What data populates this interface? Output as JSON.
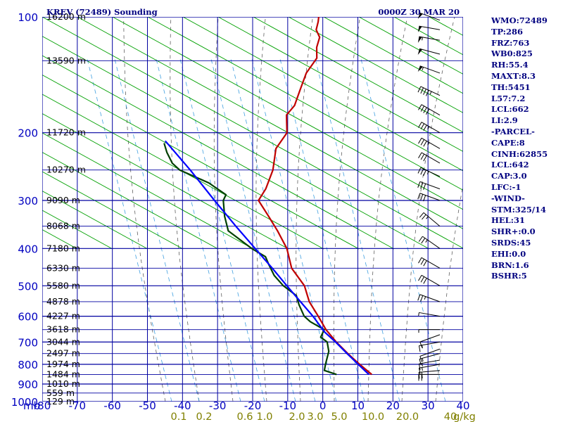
{
  "header": {
    "station": "KREV (72489) Sounding",
    "time": "0000Z 30 MAR 20"
  },
  "side_panel": [
    "WMO:72489",
    "TP:286",
    "FRZ:763",
    "WB0:825",
    "RH:55.4",
    "MAXT:8.3",
    "TH:5451",
    "L57:7.2",
    "LCL:662",
    "LI:2.9",
    "-PARCEL-",
    "CAPE:8",
    "CINH:62855",
    "LCL:642",
    "CAP:3.0",
    "LFC:-1",
    "-WIND-",
    "STM:325/14",
    "HEL:31",
    "SHR+:0.0",
    "SRDS:45",
    "EHI:0.0",
    "BRN:1.6",
    "BSHR:5"
  ],
  "colors": {
    "grid": "#0000a0",
    "isotherm": "#0000a0",
    "dry_adiabat": "#00a000",
    "moist_adiabat": "#606060",
    "mixing_ratio": "#40a0e0",
    "temperature": "#c00000",
    "dewpoint": "#004000",
    "parcel": "#0000ff",
    "barbs": "#000000",
    "label_pressure": "#0000c0",
    "label_height": "#000000",
    "label_mixing": "#808000",
    "text": "#000080"
  },
  "chart_data": {
    "type": "line",
    "subtype": "skew-T log-P sounding",
    "y_axis": {
      "label": "mb",
      "scale": "log",
      "range": [
        1000,
        100
      ],
      "ticks": [
        100,
        200,
        300,
        400,
        500,
        600,
        700,
        800,
        900,
        1000
      ],
      "tick_labels": [
        "100",
        "200",
        "300",
        "400",
        "500",
        "600",
        "700",
        "800",
        "900",
        "1000"
      ]
    },
    "x_axis": {
      "label": "",
      "unit": "C",
      "range": [
        -80,
        40
      ],
      "ticks": [
        -80,
        -70,
        -60,
        -50,
        -40,
        -30,
        -20,
        -10,
        0,
        10,
        20,
        30,
        40
      ],
      "tick_labels": [
        "-80",
        "-70",
        "-60",
        "-50",
        "-40",
        "-30",
        "-20",
        "-10",
        "0",
        "10",
        "20",
        "30",
        "40"
      ]
    },
    "heights": [
      {
        "p": 100,
        "label": "16200 m"
      },
      {
        "p": 130,
        "label": "13590 m"
      },
      {
        "p": 200,
        "label": "11720 m"
      },
      {
        "p": 250,
        "label": "10270 m"
      },
      {
        "p": 300,
        "label": "9090 m"
      },
      {
        "p": 350,
        "label": "8068 m"
      },
      {
        "p": 400,
        "label": "7180 m"
      },
      {
        "p": 450,
        "label": "6330 m"
      },
      {
        "p": 500,
        "label": "5580 m"
      },
      {
        "p": 550,
        "label": "4878 m"
      },
      {
        "p": 600,
        "label": "4227 m"
      },
      {
        "p": 650,
        "label": "3618 m"
      },
      {
        "p": 700,
        "label": "3044 m"
      },
      {
        "p": 750,
        "label": "2497 m"
      },
      {
        "p": 800,
        "label": "1974 m"
      },
      {
        "p": 850,
        "label": "1484 m"
      },
      {
        "p": 900,
        "label": "1010 m"
      },
      {
        "p": 950,
        "label": "559 m"
      },
      {
        "p": 1000,
        "label": "129 m"
      }
    ],
    "mixing_ratio_labels": [
      "0.1",
      "0.2",
      "0.6",
      "1.0",
      "2.0",
      "3.0",
      "5.0",
      "10.0",
      "20.0",
      "40",
      "g/kg"
    ],
    "mixing_ratio_values": [
      0.1,
      0.2,
      0.6,
      1.0,
      2.0,
      3.0,
      5.0,
      10.0,
      20.0,
      40
    ],
    "series": [
      {
        "name": "temperature",
        "points": [
          [
            850,
            10.0
          ],
          [
            800,
            5.2
          ],
          [
            750,
            0.4
          ],
          [
            700,
            -4.4
          ],
          [
            650,
            -9.0
          ],
          [
            600,
            -13.0
          ],
          [
            550,
            -17.5
          ],
          [
            500,
            -21.0
          ],
          [
            450,
            -27.0
          ],
          [
            400,
            -31.0
          ],
          [
            360,
            -36.0
          ],
          [
            330,
            -40.5
          ],
          [
            300,
            -45.5
          ],
          [
            280,
            -45.0
          ],
          [
            250,
            -45.5
          ],
          [
            220,
            -47.5
          ],
          [
            200,
            -46.5
          ],
          [
            180,
            -49.0
          ],
          [
            170,
            -48.0
          ],
          [
            155,
            -48.5
          ],
          [
            140,
            -49.0
          ],
          [
            128,
            -48.0
          ],
          [
            120,
            -49.5
          ],
          [
            113,
            -50.0
          ],
          [
            108,
            -52.0
          ],
          [
            103,
            -52.5
          ],
          [
            100,
            -53.0
          ]
        ]
      },
      {
        "name": "dewpoint",
        "points": [
          [
            850,
            0.0
          ],
          [
            830,
            -4.0
          ],
          [
            800,
            -4.5
          ],
          [
            740,
            -5.3
          ],
          [
            700,
            -7.0
          ],
          [
            680,
            -9.5
          ],
          [
            650,
            -9.5
          ],
          [
            620,
            -14.5
          ],
          [
            600,
            -17.0
          ],
          [
            560,
            -20.0
          ],
          [
            530,
            -22.0
          ],
          [
            500,
            -27.0
          ],
          [
            470,
            -31.0
          ],
          [
            440,
            -34.0
          ],
          [
            420,
            -36.0
          ],
          [
            400,
            -41.0
          ],
          [
            360,
            -50.0
          ],
          [
            330,
            -53.0
          ],
          [
            300,
            -55.5
          ],
          [
            290,
            -55.5
          ],
          [
            270,
            -62.0
          ],
          [
            250,
            -72.0
          ],
          [
            240,
            -75.0
          ],
          [
            225,
            -78.0
          ],
          [
            213,
            -80.0
          ]
        ]
      },
      {
        "name": "parcel",
        "points": [
          [
            850,
            9.2
          ],
          [
            800,
            4.8
          ],
          [
            750,
            0.2
          ],
          [
            700,
            -4.6
          ],
          [
            660,
            -9.0
          ],
          [
            600,
            -14.5
          ],
          [
            550,
            -20.0
          ],
          [
            500,
            -26.0
          ],
          [
            450,
            -32.5
          ],
          [
            400,
            -40.0
          ],
          [
            350,
            -48.5
          ],
          [
            300,
            -58.0
          ],
          [
            250,
            -69.0
          ],
          [
            210,
            -80.0
          ]
        ]
      }
    ],
    "wind_barbs": [
      {
        "p": 850,
        "dir": 270,
        "kt": 20
      },
      {
        "p": 830,
        "dir": 265,
        "kt": 20
      },
      {
        "p": 800,
        "dir": 260,
        "kt": 15
      },
      {
        "p": 780,
        "dir": 260,
        "kt": 15
      },
      {
        "p": 750,
        "dir": 255,
        "kt": 15
      },
      {
        "p": 730,
        "dir": 250,
        "kt": 10
      },
      {
        "p": 700,
        "dir": 260,
        "kt": 15
      },
      {
        "p": 670,
        "dir": 250,
        "kt": 10
      },
      {
        "p": 650,
        "dir": 270,
        "kt": 5
      },
      {
        "p": 600,
        "dir": 280,
        "kt": 5
      },
      {
        "p": 550,
        "dir": 290,
        "kt": 25
      },
      {
        "p": 500,
        "dir": 300,
        "kt": 30
      },
      {
        "p": 450,
        "dir": 300,
        "kt": 30
      },
      {
        "p": 400,
        "dir": 305,
        "kt": 25
      },
      {
        "p": 350,
        "dir": 310,
        "kt": 25
      },
      {
        "p": 300,
        "dir": 290,
        "kt": 30
      },
      {
        "p": 280,
        "dir": 290,
        "kt": 30
      },
      {
        "p": 260,
        "dir": 295,
        "kt": 35
      },
      {
        "p": 240,
        "dir": 300,
        "kt": 30
      },
      {
        "p": 220,
        "dir": 300,
        "kt": 35
      },
      {
        "p": 200,
        "dir": 300,
        "kt": 35
      },
      {
        "p": 180,
        "dir": 300,
        "kt": 40
      },
      {
        "p": 160,
        "dir": 295,
        "kt": 45
      },
      {
        "p": 140,
        "dir": 290,
        "kt": 55
      },
      {
        "p": 125,
        "dir": 285,
        "kt": 50
      },
      {
        "p": 115,
        "dir": 280,
        "kt": 55
      },
      {
        "p": 108,
        "dir": 280,
        "kt": 50
      },
      {
        "p": 102,
        "dir": 290,
        "kt": 50
      }
    ]
  }
}
